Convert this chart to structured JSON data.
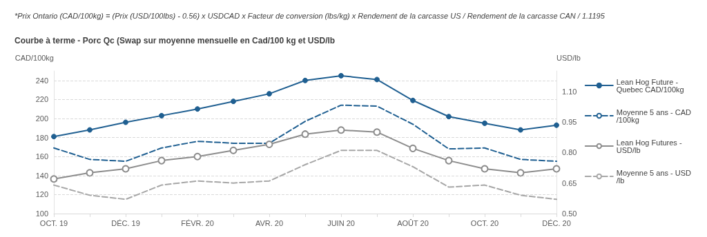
{
  "chart_data": {
    "type": "line",
    "title": "Courbe à terme - Porc Qc (Swap sur moyenne mensuelle en Cad/100 kg et USD/lb",
    "annotations": [
      "*Prix Ontario (CAD/100kg) = (Prix (USD/100lbs) - 0.56) x USDCAD x Facteur de conversion (lbs/kg) x Rendement de la carcasse US / Rendement de la carcasse CAN / 1.1195"
    ],
    "ylabel": "CAD/100kg",
    "y2label": "USD/lb",
    "categories": [
      "OCT. 19",
      null,
      "DÉC. 19",
      null,
      "FÉVR. 20",
      null,
      "AVR. 20",
      null,
      "JUIN 20",
      null,
      "AOÛT 20",
      null,
      "OCT. 20",
      null,
      "DÉC. 20"
    ],
    "series": [
      {
        "name": "Lean Hog Future - Quebec CAD/100kg",
        "color": "#1f5f91",
        "marker": "circle",
        "line_style": "solid",
        "values": [
          181,
          188,
          196,
          203,
          210,
          218,
          226,
          240,
          245,
          241,
          219,
          202,
          195,
          188,
          193
        ]
      },
      {
        "name": "Moyenne 5 ans - CAD/100kg",
        "color": "#1f5f91",
        "marker": "none",
        "line_style": "dashed",
        "values": [
          169,
          157,
          155,
          169,
          176,
          174,
          174,
          197,
          214,
          213,
          194,
          168,
          169,
          157,
          155
        ]
      },
      {
        "name": "Lean Hog Futures - USD/lb",
        "color": "#8c8c8c",
        "marker": "circle",
        "line_style": "solid",
        "axis": "y2",
        "values": [
          0.67,
          0.7,
          0.72,
          0.76,
          0.78,
          0.81,
          0.84,
          0.89,
          0.91,
          0.9,
          0.82,
          0.76,
          0.72,
          0.7,
          0.72
        ]
      },
      {
        "name": "Moyenne 5 ans - USD/lb",
        "color": "#a6a6a6",
        "marker": "none",
        "line_style": "dashed",
        "axis": "y2",
        "values": [
          0.64,
          0.59,
          0.57,
          0.64,
          0.66,
          0.65,
          0.66,
          0.74,
          0.81,
          0.81,
          0.73,
          0.63,
          0.64,
          0.59,
          0.57
        ]
      }
    ],
    "ylim": [
      100,
      250
    ],
    "yticks": [
      100,
      120,
      140,
      160,
      180,
      200,
      220,
      240
    ],
    "y2lim": [
      0.5,
      1.2
    ],
    "y2ticks": [
      {
        "value": 0.5,
        "label": "0.50"
      },
      0.65,
      {
        "value": 0.8,
        "label": "0.80"
      },
      0.95,
      {
        "value": 1.1,
        "label": "1.10"
      }
    ],
    "grid": "y",
    "legend": "right"
  }
}
